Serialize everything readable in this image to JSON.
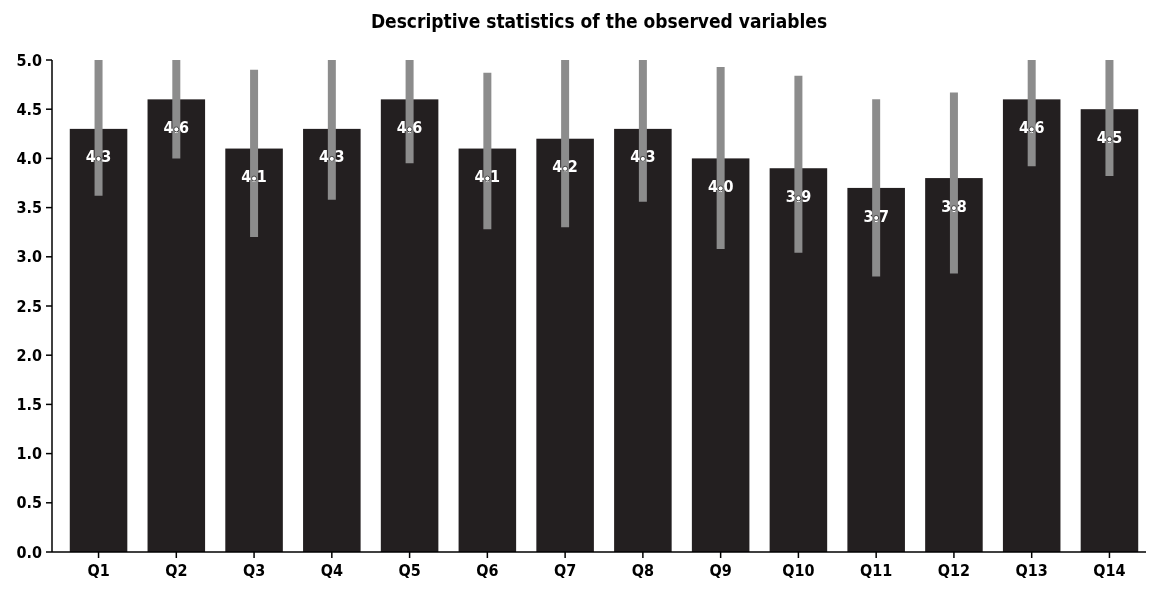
{
  "chart_data": {
    "type": "bar",
    "title": "Descriptive statistics of the observed variables",
    "categories": [
      "Q1",
      "Q2",
      "Q3",
      "Q4",
      "Q5",
      "Q6",
      "Q7",
      "Q8",
      "Q9",
      "Q10",
      "Q11",
      "Q12",
      "Q13",
      "Q14"
    ],
    "series": [
      {
        "color": "#231f20",
        "values": [
          4.3,
          4.6,
          4.1,
          4.3,
          4.6,
          4.1,
          4.2,
          4.3,
          4.0,
          3.9,
          3.7,
          3.8,
          4.6,
          4.5
        ],
        "errors": [
          [
            3.62,
            5.0
          ],
          [
            4.0,
            5.0
          ],
          [
            3.2,
            4.9
          ],
          [
            3.58,
            5.0
          ],
          [
            3.95,
            5.0
          ],
          [
            3.28,
            4.87
          ],
          [
            3.3,
            5.0
          ],
          [
            3.56,
            5.0
          ],
          [
            3.08,
            4.93
          ],
          [
            3.04,
            4.84
          ],
          [
            2.8,
            4.6
          ],
          [
            2.83,
            4.67
          ],
          [
            3.92,
            5.0
          ],
          [
            3.82,
            5.0
          ]
        ],
        "value_labels": [
          "4.3",
          "4.6",
          "4.1",
          "4.3",
          "4.6",
          "4.1",
          "4.2",
          "4.3",
          "4.0",
          "3.9",
          "3.7",
          "3.8",
          "4.6",
          "4.5"
        ]
      }
    ],
    "ylim": [
      0,
      5
    ],
    "yticks": [
      {
        "value": 0,
        "label": "0.0"
      },
      {
        "value": 0.5,
        "label": "0.5"
      },
      {
        "value": 1,
        "label": "1.0"
      },
      {
        "value": 1.5,
        "label": "1.5"
      },
      {
        "value": 2,
        "label": "2.0"
      },
      {
        "value": 2.5,
        "label": "2.5"
      },
      {
        "value": 3,
        "label": "3.0"
      },
      {
        "value": 3.5,
        "label": "3.5"
      },
      {
        "value": 4,
        "label": "4.0"
      },
      {
        "value": 4.5,
        "label": "4.5"
      },
      {
        "value": 5,
        "label": "5.0"
      }
    ],
    "grid": false
  }
}
